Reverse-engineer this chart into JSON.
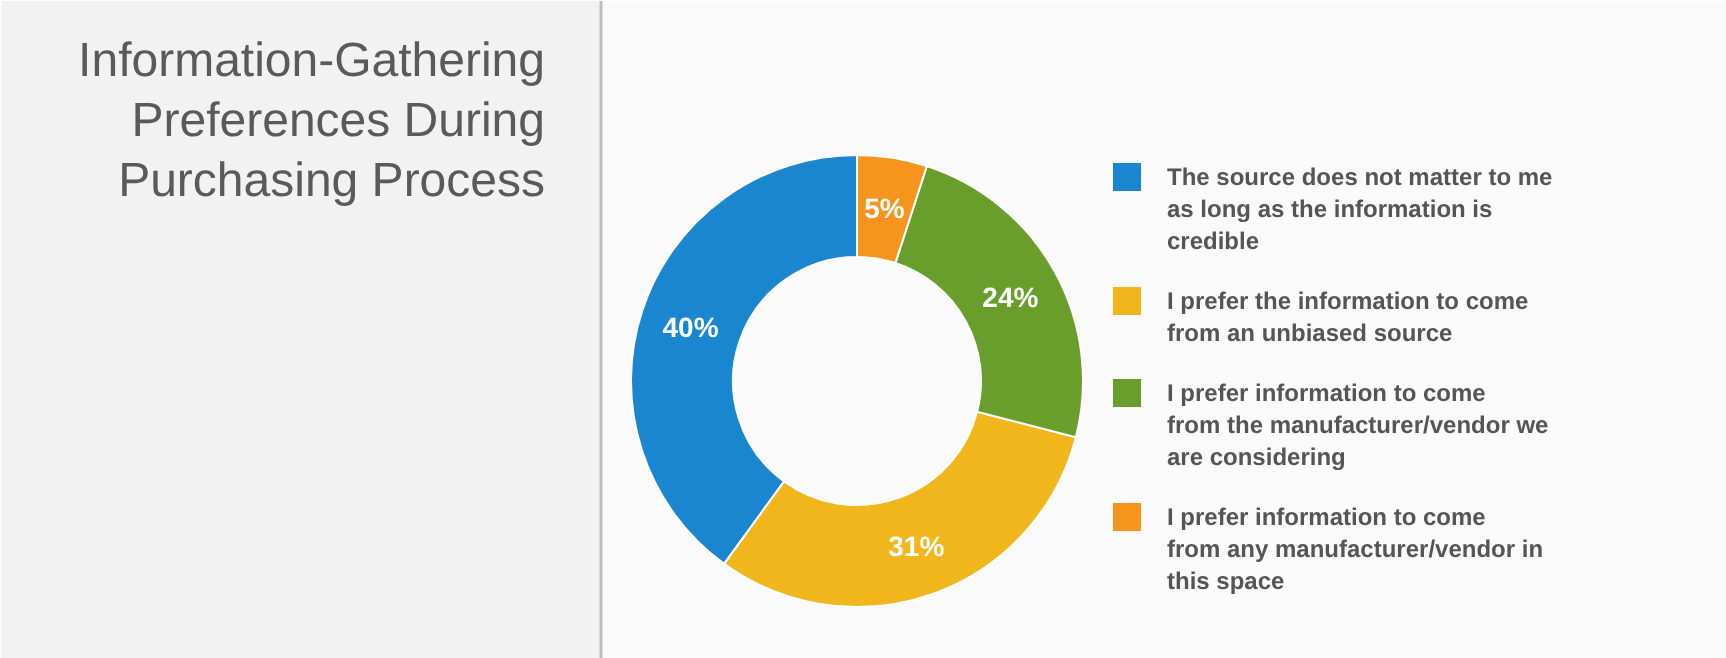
{
  "chart_data": {
    "type": "donut",
    "title": "Information-Gathering Preferences During Purchasing Process",
    "categories": [
      "The source does not matter to me as long as the information is credible",
      "I prefer the information to come from an unbiased source",
      "I prefer information to come from the manufacturer/vendor we are considering",
      "I prefer information to come from any manufacturer/vendor in this space"
    ],
    "values": [
      40,
      31,
      24,
      5
    ],
    "value_labels": [
      "40%",
      "31%",
      "24%",
      "5%"
    ],
    "colors": [
      "#1a86cf",
      "#f0b61c",
      "#6a9e2c",
      "#f7941d"
    ],
    "legend": "right"
  }
}
